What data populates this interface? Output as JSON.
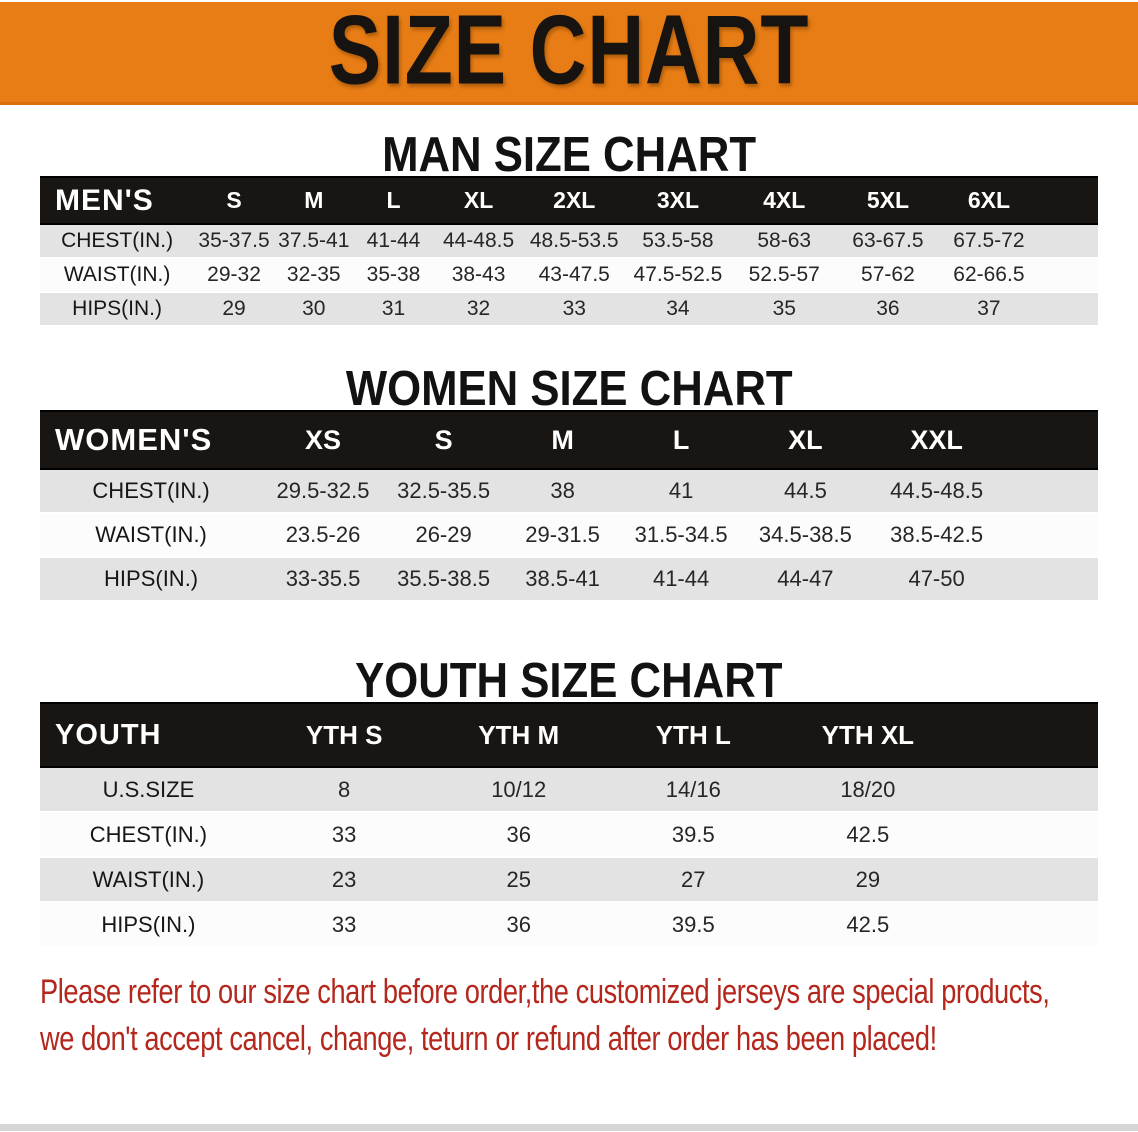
{
  "banner": {
    "title": "SIZE CHART"
  },
  "sections": [
    {
      "heading": "MAN SIZE CHART",
      "table": {
        "label": "MEN'S",
        "columns": [
          "S",
          "M",
          "L",
          "XL",
          "2XL",
          "3XL",
          "4XL",
          "5XL",
          "6XL"
        ],
        "rows": [
          {
            "label": "CHEST(IN.)",
            "values": [
              "35-37.5",
              "37.5-41",
              "41-44",
              "44-48.5",
              "48.5-53.5",
              "53.5-58",
              "58-63",
              "63-67.5",
              "67.5-72"
            ]
          },
          {
            "label": "WAIST(IN.)",
            "values": [
              "29-32",
              "32-35",
              "35-38",
              "38-43",
              "43-47.5",
              "47.5-52.5",
              "52.5-57",
              "57-62",
              "62-66.5"
            ]
          },
          {
            "label": "HIPS(IN.)",
            "values": [
              "29",
              "30",
              "31",
              "32",
              "33",
              "34",
              "35",
              "36",
              "37"
            ]
          }
        ]
      }
    },
    {
      "heading": "WOMEN SIZE CHART",
      "table": {
        "label": "WOMEN'S",
        "columns": [
          "XS",
          "S",
          "M",
          "L",
          "XL",
          "XXL"
        ],
        "rows": [
          {
            "label": "CHEST(IN.)",
            "values": [
              "29.5-32.5",
              "32.5-35.5",
              "38",
              "41",
              "44.5",
              "44.5-48.5"
            ]
          },
          {
            "label": "WAIST(IN.)",
            "values": [
              "23.5-26",
              "26-29",
              "29-31.5",
              "31.5-34.5",
              "34.5-38.5",
              "38.5-42.5"
            ]
          },
          {
            "label": "HIPS(IN.)",
            "values": [
              "33-35.5",
              "35.5-38.5",
              "38.5-41",
              "41-44",
              "44-47",
              "47-50"
            ]
          }
        ]
      }
    },
    {
      "heading": "YOUTH SIZE CHART",
      "table": {
        "label": "YOUTH",
        "columns": [
          "YTH S",
          "YTH M",
          "YTH L",
          "YTH XL"
        ],
        "rows": [
          {
            "label": "U.S.SIZE",
            "values": [
              "8",
              "10/12",
              "14/16",
              "18/20"
            ]
          },
          {
            "label": "CHEST(IN.)",
            "values": [
              "33",
              "36",
              "39.5",
              "42.5"
            ]
          },
          {
            "label": "WAIST(IN.)",
            "values": [
              "23",
              "25",
              "27",
              "29"
            ]
          },
          {
            "label": "HIPS(IN.)",
            "values": [
              "33",
              "36",
              "39.5",
              "42.5"
            ]
          }
        ]
      }
    }
  ],
  "disclaimer": {
    "line1": "Please refer to our size chart before order,the customized jerseys are special products,",
    "line2": "we don't accept cancel, change, teturn or refund after order has been placed!"
  },
  "colors": {
    "banner_background": "#E87D15",
    "table_header_background": "#191512",
    "table_stripe_gray": "#e3e3e3",
    "disclaimer_red": "#b3271d"
  }
}
